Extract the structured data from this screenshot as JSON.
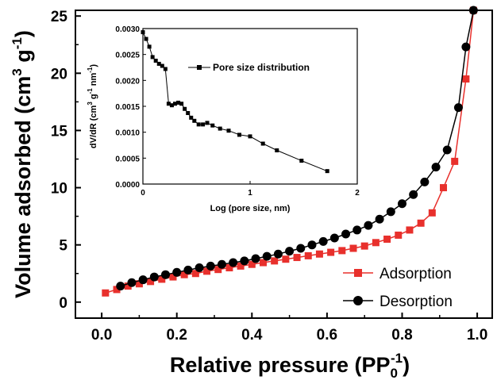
{
  "chart_data": [
    {
      "type": "scatter",
      "xlabel": "Relative pressure (PP0-1)",
      "xlabel_parts": {
        "base": "Relative pressure (PP",
        "sub": "0",
        "sup": "-1",
        "tail": ")"
      },
      "ylabel": "Volume adsorbed (cm3 g-1)",
      "ylabel_parts": {
        "base": "Volume adsorbed (cm",
        "sup1": "3",
        "mid": " g",
        "sup2": "-1",
        "tail": ")"
      },
      "xlim": [
        -0.07,
        1.04
      ],
      "ylim": [
        -1.4,
        25.5
      ],
      "xticks": [
        "0.0",
        "0.2",
        "0.4",
        "0.6",
        "0.8",
        "1.0"
      ],
      "yticks": [
        "0",
        "5",
        "10",
        "15",
        "20",
        "25"
      ],
      "legend_position": "bottom-right",
      "series": [
        {
          "name": "Adsorption",
          "color": "#e8302c",
          "marker": "square",
          "x": [
            0.01,
            0.04,
            0.07,
            0.1,
            0.13,
            0.16,
            0.19,
            0.22,
            0.25,
            0.28,
            0.31,
            0.34,
            0.37,
            0.4,
            0.43,
            0.46,
            0.49,
            0.52,
            0.55,
            0.58,
            0.61,
            0.64,
            0.67,
            0.7,
            0.73,
            0.76,
            0.79,
            0.82,
            0.85,
            0.88,
            0.91,
            0.94,
            0.97,
            0.99
          ],
          "y": [
            0.8,
            1.1,
            1.4,
            1.6,
            1.8,
            2.0,
            2.2,
            2.4,
            2.5,
            2.7,
            2.85,
            3.0,
            3.15,
            3.3,
            3.45,
            3.6,
            3.75,
            3.9,
            4.05,
            4.2,
            4.35,
            4.5,
            4.7,
            4.9,
            5.2,
            5.5,
            5.85,
            6.3,
            6.9,
            7.8,
            10.0,
            12.3,
            19.5,
            25.5
          ]
        },
        {
          "name": "Desorption",
          "color": "#000000",
          "marker": "circle",
          "x": [
            0.05,
            0.08,
            0.11,
            0.14,
            0.17,
            0.2,
            0.23,
            0.26,
            0.29,
            0.32,
            0.35,
            0.38,
            0.41,
            0.44,
            0.47,
            0.5,
            0.53,
            0.56,
            0.59,
            0.62,
            0.65,
            0.68,
            0.71,
            0.74,
            0.77,
            0.8,
            0.83,
            0.86,
            0.89,
            0.92,
            0.95,
            0.97,
            0.99
          ],
          "y": [
            1.4,
            1.7,
            1.95,
            2.2,
            2.4,
            2.6,
            2.8,
            3.0,
            3.15,
            3.3,
            3.45,
            3.6,
            3.8,
            4.0,
            4.2,
            4.45,
            4.7,
            5.0,
            5.3,
            5.6,
            5.95,
            6.3,
            6.7,
            7.25,
            7.9,
            8.6,
            9.4,
            10.5,
            11.8,
            13.3,
            17.0,
            22.3,
            25.5
          ]
        }
      ]
    },
    {
      "type": "line",
      "xlabel": "Log (pore size, nm)",
      "ylabel": "dV/dR (cm3 g-1 nm-1)",
      "ylabel_parts": {
        "base": "dV/dR (cm",
        "sup1": "3",
        "mid1": " g",
        "sup2": "-1",
        "mid2": " nm",
        "sup3": "-1",
        "tail": ")"
      },
      "xlim": [
        0,
        2
      ],
      "ylim": [
        0,
        0.003
      ],
      "xticks": [
        "0",
        "1",
        "2"
      ],
      "yticks": [
        "0.0000",
        "0.0005",
        "0.0010",
        "0.0015",
        "0.0020",
        "0.0025",
        "0.0030"
      ],
      "legend_position": "top-right",
      "series": [
        {
          "name": "Pore size distribution",
          "color": "#000000",
          "marker": "square",
          "x": [
            0.0,
            0.03,
            0.06,
            0.09,
            0.12,
            0.15,
            0.18,
            0.21,
            0.24,
            0.27,
            0.3,
            0.33,
            0.36,
            0.39,
            0.42,
            0.45,
            0.48,
            0.52,
            0.56,
            0.6,
            0.65,
            0.72,
            0.8,
            0.9,
            1.0,
            1.12,
            1.25,
            1.48,
            1.72
          ],
          "y": [
            0.00293,
            0.0028,
            0.00265,
            0.00245,
            0.00238,
            0.00232,
            0.00228,
            0.00222,
            0.00155,
            0.00152,
            0.00155,
            0.00157,
            0.00155,
            0.00145,
            0.00137,
            0.00128,
            0.00122,
            0.00115,
            0.00115,
            0.00118,
            0.00113,
            0.00107,
            0.00103,
            0.00095,
            0.00092,
            0.00078,
            0.00065,
            0.00045,
            0.00025
          ]
        }
      ]
    }
  ]
}
